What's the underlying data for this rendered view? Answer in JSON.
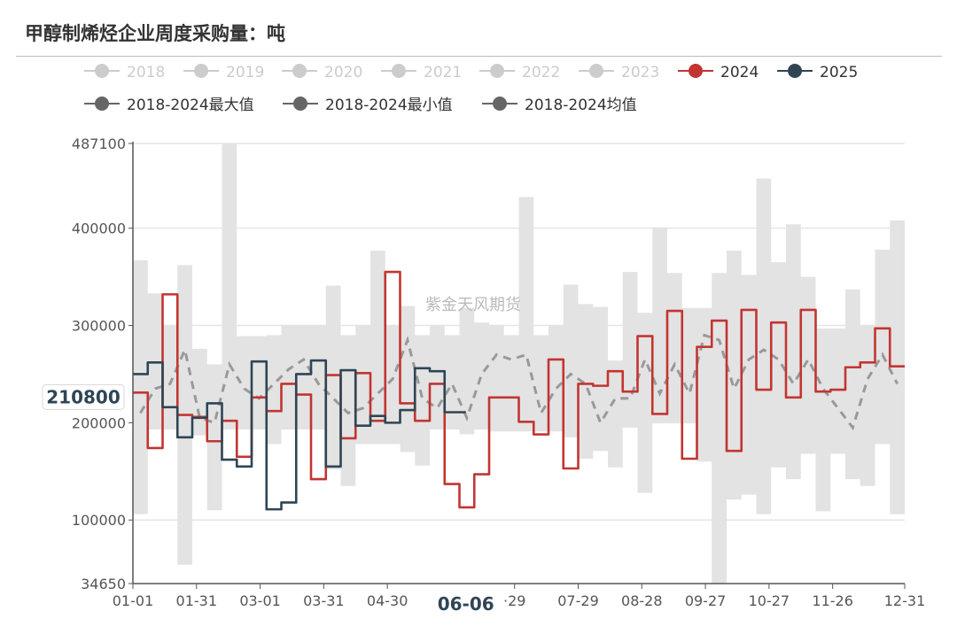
{
  "title": "甲醇制烯烃企业周度采购量：吨",
  "watermark": "紫金天风期货",
  "chart_data": {
    "type": "line",
    "title": "甲醇制烯烃企业周度采购量：吨",
    "unit": "吨",
    "ylim": [
      34650,
      487100
    ],
    "y_ticks": [
      "487100",
      "400000",
      "300000",
      "200000",
      "100000",
      "34650"
    ],
    "y_tick_values": [
      487100,
      400000,
      300000,
      200000,
      100000,
      34650
    ],
    "x_ticks": [
      "01-01",
      "01-31",
      "03-01",
      "03-31",
      "04-30",
      "·29",
      "07-29",
      "08-28",
      "09-27",
      "10-27",
      "11-26",
      "12-31"
    ],
    "x_tick_days": [
      0,
      30,
      60,
      90,
      120,
      180,
      210,
      240,
      270,
      300,
      330,
      364
    ],
    "grid": true,
    "legend_position": "top",
    "pointer": {
      "x_label": "06-06",
      "x_day": 157,
      "y_label": "210800",
      "y_value": 210800
    },
    "legend": [
      {
        "name": "2018",
        "color": "#cccccc",
        "active": false
      },
      {
        "name": "2019",
        "color": "#cccccc",
        "active": false
      },
      {
        "name": "2020",
        "color": "#cccccc",
        "active": false
      },
      {
        "name": "2021",
        "color": "#cccccc",
        "active": false
      },
      {
        "name": "2022",
        "color": "#cccccc",
        "active": false
      },
      {
        "name": "2023",
        "color": "#cccccc",
        "active": false
      },
      {
        "name": "2024",
        "color": "#c23531",
        "active": true
      },
      {
        "name": "2025",
        "color": "#2f4554",
        "active": true
      },
      {
        "name": "2018-2024最大值",
        "color": "#666666",
        "active": true
      },
      {
        "name": "2018-2024最小值",
        "color": "#666666",
        "active": true
      },
      {
        "name": "2018-2024均值",
        "color": "#666666",
        "active": true
      }
    ],
    "band_color": "#e3e3e3",
    "x_unit": "week",
    "series": [
      {
        "name": "2024",
        "color": "#c23531",
        "values": [
          231000,
          174000,
          332000,
          208000,
          206000,
          181000,
          202000,
          165000,
          226000,
          212000,
          240000,
          229000,
          142000,
          249000,
          184000,
          251000,
          202000,
          355000,
          220000,
          202000,
          240000,
          137000,
          113000,
          147000,
          226000,
          226000,
          201000,
          188000,
          265000,
          153000,
          240000,
          238000,
          253000,
          232000,
          289000,
          209000,
          315000,
          163000,
          278000,
          305000,
          171000,
          316000,
          234000,
          303000,
          226000,
          316000,
          232000,
          234000,
          257000,
          262000,
          297000,
          258000
        ]
      },
      {
        "name": "2025",
        "color": "#2f4554",
        "values": [
          250000,
          262000,
          216000,
          185000,
          205000,
          220000,
          162000,
          155000,
          263000,
          111000,
          118000,
          250000,
          264000,
          155000,
          254000,
          197000,
          207000,
          200000,
          213000,
          256000,
          253000,
          210800
        ]
      },
      {
        "name": "2018-2024最大值",
        "color": "#e3e3e3",
        "values": [
          367000,
          333000,
          300000,
          362000,
          276000,
          260000,
          487000,
          289000,
          289000,
          290000,
          300000,
          300000,
          300000,
          341000,
          290000,
          300000,
          377000,
          300000,
          320000,
          290000,
          300000,
          290000,
          318000,
          303000,
          300000,
          290000,
          432000,
          290000,
          300000,
          342000,
          322000,
          319000,
          264000,
          355000,
          313000,
          401000,
          354000,
          318000,
          318000,
          354000,
          377000,
          352000,
          451000,
          365000,
          404000,
          350000,
          297000,
          297000,
          337000,
          300000,
          378000,
          408000
        ]
      },
      {
        "name": "2018-2024最小值",
        "color": "#e3e3e3",
        "values": [
          106000,
          193000,
          193000,
          54000,
          187000,
          110000,
          193000,
          193000,
          193000,
          178000,
          193000,
          193000,
          193000,
          152000,
          135000,
          178000,
          178000,
          178000,
          170000,
          156000,
          193000,
          193000,
          188000,
          193000,
          191000,
          191000,
          191000,
          191000,
          191000,
          185000,
          163000,
          171000,
          154000,
          195000,
          128000,
          200000,
          200000,
          200000,
          160000,
          35000,
          121000,
          126000,
          106000,
          154000,
          142000,
          168000,
          109000,
          168000,
          142000,
          135000,
          178000,
          106000
        ]
      },
      {
        "name": "2018-2024均值",
        "color": "#999999",
        "values": [
          210000,
          235000,
          240000,
          275000,
          205000,
          200000,
          260000,
          235000,
          225000,
          240000,
          255000,
          265000,
          240000,
          225000,
          210000,
          215000,
          230000,
          245000,
          285000,
          225000,
          215000,
          240000,
          205000,
          250000,
          270000,
          265000,
          270000,
          210000,
          235000,
          250000,
          240000,
          200000,
          225000,
          225000,
          265000,
          230000,
          260000,
          230000,
          290000,
          285000,
          235000,
          265000,
          275000,
          265000,
          240000,
          265000,
          235000,
          215000,
          195000,
          245000,
          270000,
          240000
        ]
      }
    ]
  }
}
